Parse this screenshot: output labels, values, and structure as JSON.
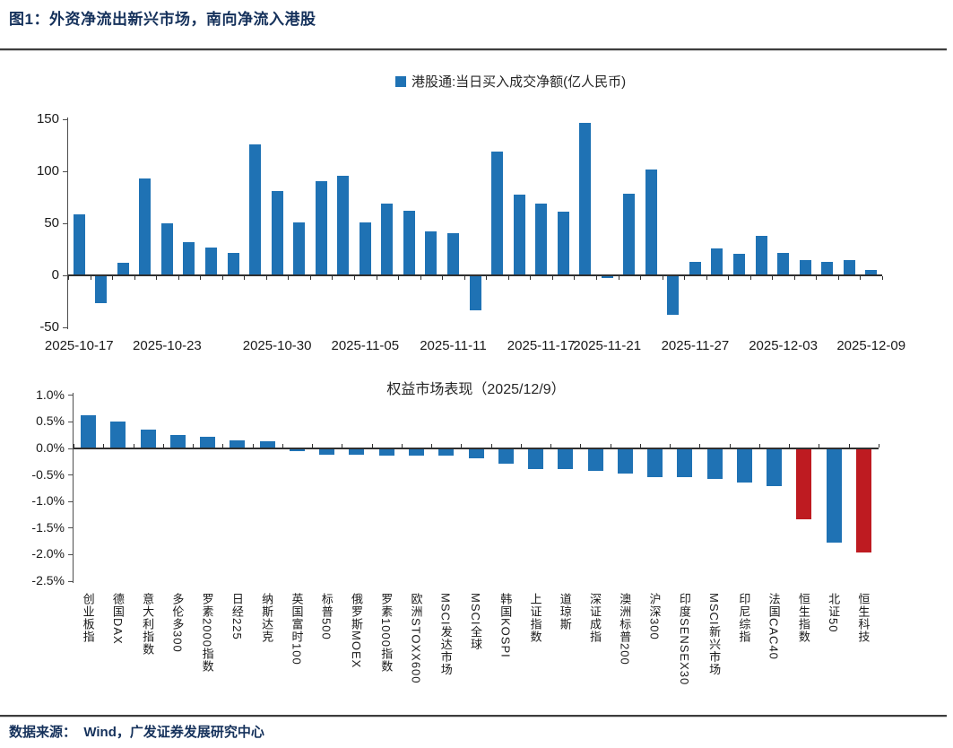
{
  "figure": {
    "title": "图1：外资净流出新兴市场，南向净流入港股",
    "source": "数据来源：  Wind，广发证券发展研究中心"
  },
  "colors": {
    "bar_blue": "#1f72b4",
    "bar_red": "#be1b21",
    "title_navy": "#15315b",
    "axis": "#2f2f2f",
    "rule": "#3d3d3d"
  },
  "chart_data": [
    {
      "type": "bar",
      "series_name": "港股通:当日买入成交净额(亿人民币)",
      "legend_position": "top-center",
      "ylim": [
        -50,
        150
      ],
      "yticks": [
        {
          "label": "150",
          "value": 150
        },
        {
          "label": "100",
          "value": 100
        },
        {
          "label": "50",
          "value": 50
        },
        {
          "label": "0",
          "value": 0
        },
        {
          "label": "-50",
          "value": -50
        }
      ],
      "values": [
        58,
        -26,
        11,
        92,
        49,
        31,
        26,
        21,
        125,
        80,
        50,
        90,
        95,
        50,
        68,
        61,
        41,
        40,
        -33,
        118,
        77,
        68,
        60,
        146,
        -2,
        78,
        101,
        -37,
        12,
        25,
        20,
        37,
        21,
        14,
        12,
        14,
        4
      ],
      "x_labels": [
        {
          "index": 0,
          "label": "2025-10-17"
        },
        {
          "index": 4,
          "label": "2025-10-23"
        },
        {
          "index": 9,
          "label": "2025-10-30"
        },
        {
          "index": 13,
          "label": "2025-11-05"
        },
        {
          "index": 17,
          "label": "2025-11-11"
        },
        {
          "index": 21,
          "label": "2025-11-17"
        },
        {
          "index": 24,
          "label": "2025-11-21"
        },
        {
          "index": 28,
          "label": "2025-11-27"
        },
        {
          "index": 32,
          "label": "2025-12-03"
        },
        {
          "index": 36,
          "label": "2025-12-09"
        }
      ],
      "grid": false
    },
    {
      "type": "bar",
      "title": "权益市场表现（2025/12/9）",
      "ylim": [
        -2.5,
        1.0
      ],
      "yticks": [
        {
          "label": "1.0%",
          "value": 1.0
        },
        {
          "label": "0.5%",
          "value": 0.5
        },
        {
          "label": "0.0%",
          "value": 0.0
        },
        {
          "label": "-0.5%",
          "value": -0.5
        },
        {
          "label": "-1.0%",
          "value": -1.0
        },
        {
          "label": "-1.5%",
          "value": -1.5
        },
        {
          "label": "-2.0%",
          "value": -2.0
        },
        {
          "label": "-2.5%",
          "value": -2.5
        }
      ],
      "categories": [
        "创业板指",
        "德国DAX",
        "意大利指数",
        "多伦多300",
        "罗素2000指数",
        "日经225",
        "纳斯达克",
        "英国富时100",
        "标普500",
        "俄罗斯MOEX",
        "罗素1000指数",
        "欧洲STOXX600",
        "MSCI发达市场",
        "MSCI全球",
        "韩国KOSPI",
        "上证指数",
        "道琼斯",
        "深证成指",
        "澳洲标普200",
        "沪深300",
        "印度SENSEX30",
        "MSCI新兴市场",
        "印尼综指",
        "法国CAC40",
        "恒生指数",
        "北证50",
        "恒生科技"
      ],
      "values": [
        0.6,
        0.49,
        0.33,
        0.23,
        0.2,
        0.14,
        0.12,
        -0.04,
        -0.1,
        -0.1,
        -0.11,
        -0.11,
        -0.12,
        -0.17,
        -0.27,
        -0.37,
        -0.37,
        -0.41,
        -0.45,
        -0.52,
        -0.53,
        -0.55,
        -0.63,
        -0.7,
        -1.31,
        -1.76,
        -1.95
      ],
      "highlight_indices": [
        24,
        26
      ],
      "grid": false
    }
  ]
}
